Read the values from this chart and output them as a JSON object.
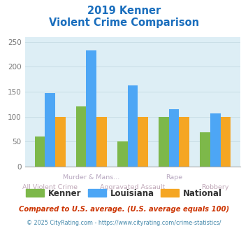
{
  "title_line1": "2019 Kenner",
  "title_line2": "Violent Crime Comparison",
  "categories": [
    "All Violent Crime",
    "Murder & Mans...",
    "Aggravated Assault",
    "Rape",
    "Robbery"
  ],
  "row1_labels": [
    "Murder & Mans...",
    "Rape"
  ],
  "row1_indices": [
    1,
    3
  ],
  "row2_labels": [
    "All Violent Crime",
    "Aggravated Assault",
    "Robbery"
  ],
  "row2_indices": [
    0,
    2,
    4
  ],
  "kenner": [
    60,
    120,
    50,
    100,
    68
  ],
  "louisiana": [
    147,
    233,
    162,
    115,
    106
  ],
  "national": [
    100,
    100,
    100,
    100,
    100
  ],
  "kenner_color": "#7db84a",
  "louisiana_color": "#4da6f5",
  "national_color": "#f5a623",
  "bg_color": "#ddeef5",
  "title_color": "#1a6ebd",
  "row1_color": "#b8a8c0",
  "row2_color": "#c0a8b8",
  "ylim": [
    0,
    260
  ],
  "yticks": [
    0,
    50,
    100,
    150,
    200,
    250
  ],
  "footnote1": "Compared to U.S. average. (U.S. average equals 100)",
  "footnote2": "© 2025 CityRating.com - https://www.cityrating.com/crime-statistics/",
  "footnote1_color": "#cc3300",
  "footnote2_color": "#4488aa",
  "grid_color": "#c8dde5",
  "legend_labels": [
    "Kenner",
    "Louisiana",
    "National"
  ]
}
